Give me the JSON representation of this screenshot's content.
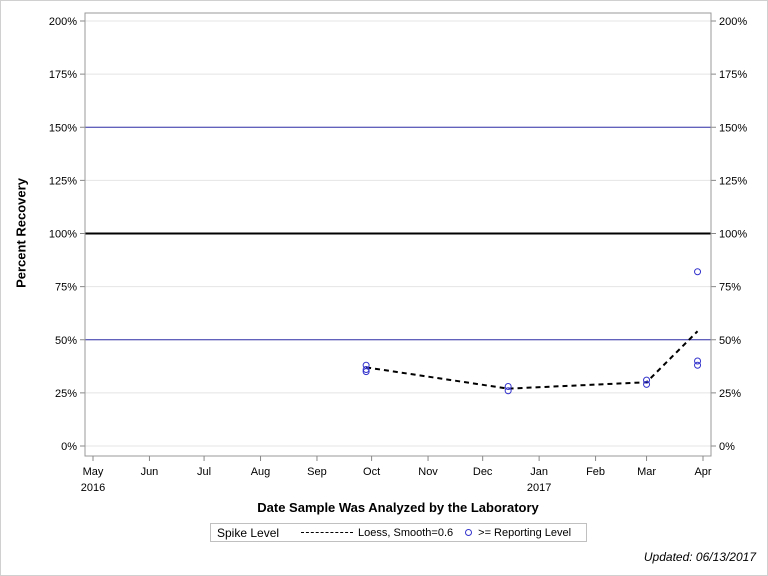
{
  "chart_data": {
    "type": "scatter",
    "title": "",
    "xlabel": "Date Sample Was Analyzed by the Laboratory",
    "ylabel": "Percent Recovery",
    "ylim": [
      0,
      200
    ],
    "y_ticks": [
      "0%",
      "25%",
      "50%",
      "75%",
      "100%",
      "125%",
      "150%",
      "175%",
      "200%"
    ],
    "x_ticks": [
      {
        "label": "May",
        "sub": "2016"
      },
      {
        "label": "Jun",
        "sub": ""
      },
      {
        "label": "Jul",
        "sub": ""
      },
      {
        "label": "Aug",
        "sub": ""
      },
      {
        "label": "Sep",
        "sub": ""
      },
      {
        "label": "Oct",
        "sub": ""
      },
      {
        "label": "Nov",
        "sub": ""
      },
      {
        "label": "Dec",
        "sub": ""
      },
      {
        "label": "Jan",
        "sub": "2017"
      },
      {
        "label": "Feb",
        "sub": ""
      },
      {
        "label": "Mar",
        "sub": ""
      },
      {
        "label": "Apr",
        "sub": ""
      }
    ],
    "reference_lines": [
      {
        "y": 100,
        "color": "#000000",
        "style": "solid-thick"
      },
      {
        "y": 150,
        "color": "#3333aa",
        "style": "solid"
      },
      {
        "y": 50,
        "color": "#3333aa",
        "style": "solid"
      }
    ],
    "grid": true,
    "series": [
      {
        "name": ">= Reporting Level",
        "type": "scatter",
        "color": "#3333cc",
        "points": [
          {
            "x": "2016-09-28",
            "y": 38
          },
          {
            "x": "2016-09-28",
            "y": 36
          },
          {
            "x": "2016-09-28",
            "y": 35
          },
          {
            "x": "2016-12-15",
            "y": 28
          },
          {
            "x": "2016-12-15",
            "y": 26
          },
          {
            "x": "2017-03-01",
            "y": 31
          },
          {
            "x": "2017-03-01",
            "y": 29
          },
          {
            "x": "2017-03-29",
            "y": 82
          },
          {
            "x": "2017-03-29",
            "y": 40
          },
          {
            "x": "2017-03-29",
            "y": 38
          }
        ]
      },
      {
        "name": "Loess, Smooth=0.6",
        "type": "line",
        "style": "dashed",
        "color": "#000000",
        "points": [
          {
            "x": "2016-09-28",
            "y": 37
          },
          {
            "x": "2016-12-15",
            "y": 27
          },
          {
            "x": "2017-03-01",
            "y": 30
          },
          {
            "x": "2017-03-29",
            "y": 54
          }
        ]
      }
    ],
    "legend": {
      "title": "Spike Level",
      "entries": [
        "Loess, Smooth=0.6",
        ">= Reporting Level"
      ],
      "position": "bottom"
    }
  },
  "footer": {
    "updated": "Updated: 06/13/2017"
  }
}
